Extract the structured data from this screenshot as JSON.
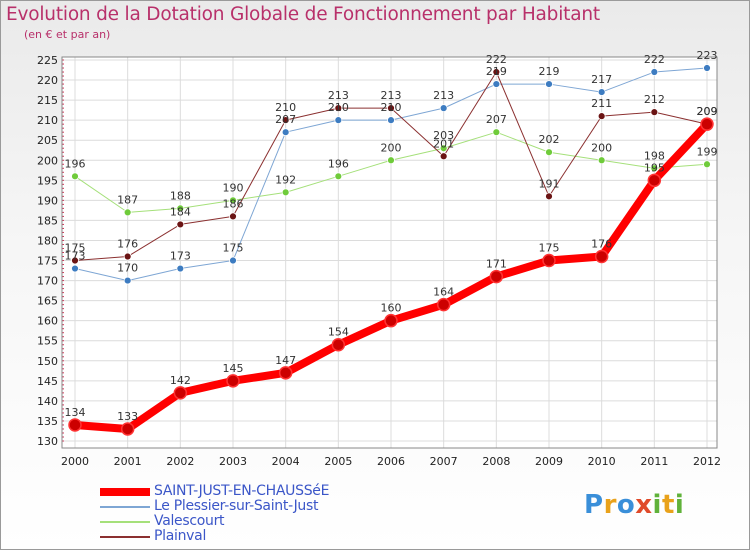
{
  "title": "Evolution de la Dotation Globale de Fonctionnement par Habitant",
  "subtitle": "(en € et par an)",
  "brand": "Proxiti",
  "chart_data": {
    "type": "line",
    "title": "Evolution de la Dotation Globale de Fonctionnement par Habitant",
    "subtitle": "(en € et par an)",
    "xlabel": "",
    "ylabel": "",
    "x": [
      "2000",
      "2001",
      "2002",
      "2003",
      "2004",
      "2005",
      "2006",
      "2007",
      "2008",
      "2009",
      "2010",
      "2011",
      "2012"
    ],
    "ylim": [
      130,
      225
    ],
    "yticks": [
      130,
      135,
      140,
      145,
      150,
      155,
      160,
      165,
      170,
      175,
      180,
      185,
      190,
      195,
      200,
      205,
      210,
      215,
      220,
      225
    ],
    "grid": true,
    "legend_position": "bottom-left",
    "series": [
      {
        "name": "SAINT-JUST-EN-CHAUSSéE",
        "color": "#ff0000",
        "width": 8,
        "marker": "#cc0000",
        "values": [
          134,
          133,
          142,
          145,
          147,
          154,
          160,
          164,
          171,
          175,
          176,
          195,
          209
        ]
      },
      {
        "name": "Le Plessier-sur-Saint-Just",
        "color": "#7ea6d4",
        "width": 1,
        "marker": "#3d7cc1",
        "values": [
          173,
          170,
          173,
          175,
          207,
          210,
          210,
          213,
          219,
          219,
          217,
          222,
          223
        ]
      },
      {
        "name": "Valescourt",
        "color": "#a5e07a",
        "width": 1,
        "marker": "#6fcb3a",
        "values": [
          196,
          187,
          188,
          190,
          192,
          196,
          200,
          203,
          207,
          202,
          200,
          198,
          199
        ]
      },
      {
        "name": "Plainval",
        "color": "#8b3030",
        "width": 1,
        "marker": "#6b1414",
        "values": [
          175,
          176,
          184,
          186,
          210,
          213,
          213,
          201,
          222,
          191,
          211,
          212,
          209
        ]
      }
    ]
  }
}
